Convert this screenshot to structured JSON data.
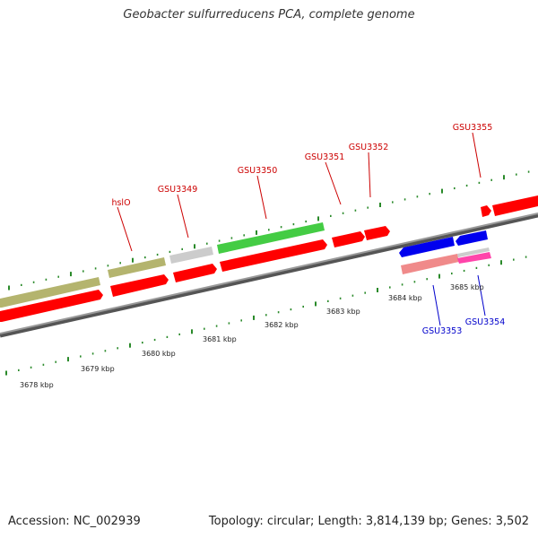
{
  "title": "Geobacter sulfurreducens PCA, complete genome",
  "footer": {
    "accession": "Accession: NC_002939",
    "summary": "Topology: circular; Length: 3,814,139 bp; Genes: 3,502"
  },
  "colors": {
    "forward_gene": "#ff0000",
    "reverse_gene": "#0000ff",
    "pseudogene_forward": "#b4b46e",
    "rna_gene": "#cccccc",
    "highlight_gene": "#44cc44",
    "reverse_light": "#f08a8a",
    "reverse_pink": "#ff44aa",
    "ticks": "#2a8a2a",
    "backbone": "#888888",
    "label_forward": "#cc0000",
    "label_reverse": "#0000cc"
  },
  "kbp_labels": [
    "3678 kbp",
    "3679 kbp",
    "3680 kbp",
    "3681 kbp",
    "3682 kbp",
    "3683 kbp",
    "3684 kbp",
    "3685 kbp"
  ],
  "gene_labels": [
    {
      "name": "hslO",
      "strand": "forward"
    },
    {
      "name": "GSU3349",
      "strand": "forward"
    },
    {
      "name": "GSU3350",
      "strand": "forward"
    },
    {
      "name": "GSU3351",
      "strand": "forward"
    },
    {
      "name": "GSU3352",
      "strand": "forward"
    },
    {
      "name": "GSU3355",
      "strand": "forward"
    },
    {
      "name": "GSU3353",
      "strand": "reverse"
    },
    {
      "name": "GSU3354",
      "strand": "reverse"
    }
  ]
}
